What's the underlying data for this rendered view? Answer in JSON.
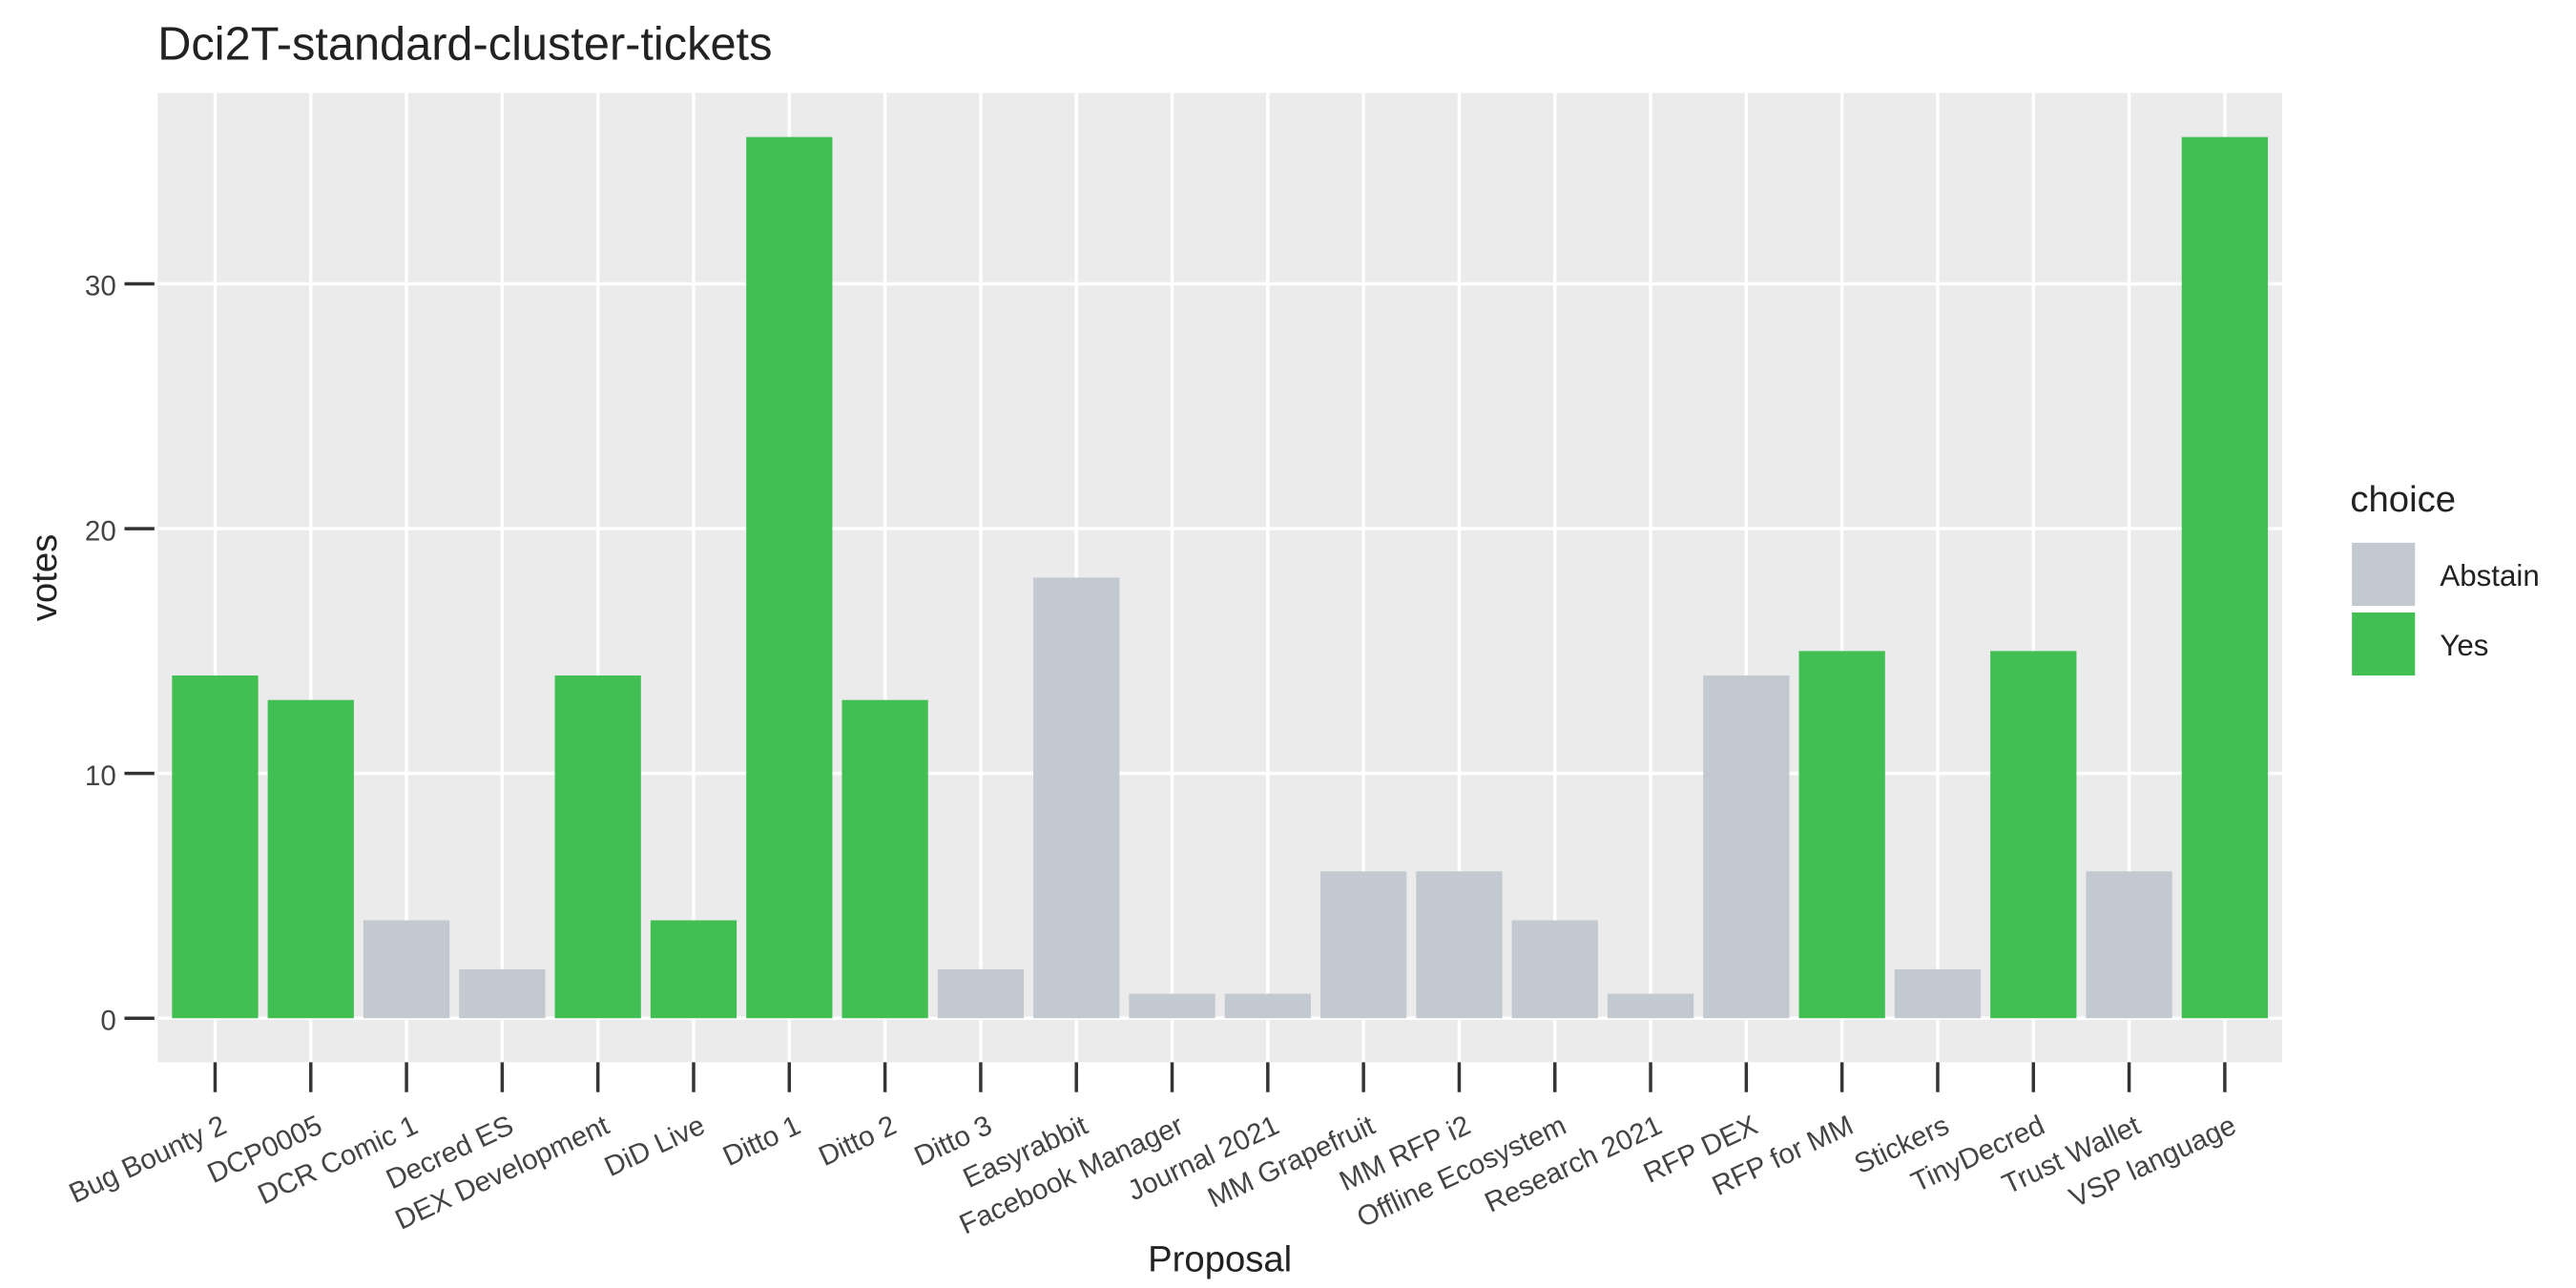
{
  "chart_data": {
    "type": "bar",
    "title": "Dci2T-standard-cluster-tickets",
    "x_label": "Proposal",
    "y_label": "votes",
    "legend_title": "choice",
    "legend_position": "right",
    "grid": true,
    "categories": [
      "Bug Bounty 2",
      "DCP0005",
      "DCR Comic 1",
      "Decred ES",
      "DEX Development",
      "DiD Live",
      "Ditto 1",
      "Ditto 2",
      "Ditto 3",
      "Easyrabbit",
      "Facebook Manager",
      "Journal 2021",
      "MM Grapefruit",
      "MM RFP i2",
      "Offline Ecosystem",
      "Research 2021",
      "RFP DEX",
      "RFP for MM",
      "Stickers",
      "TinyDecred",
      "Trust Wallet",
      "VSP language"
    ],
    "series": [
      {
        "name": "Abstain",
        "color": "#c3c9d0",
        "values": [
          null,
          null,
          4,
          2,
          null,
          null,
          null,
          null,
          2,
          18,
          1,
          1,
          6,
          6,
          4,
          1,
          14,
          null,
          2,
          null,
          6,
          null
        ]
      },
      {
        "name": "Yes",
        "color": "#41bf52",
        "values": [
          14,
          13,
          null,
          null,
          14,
          4,
          36,
          13,
          null,
          null,
          null,
          null,
          null,
          null,
          null,
          null,
          null,
          15,
          null,
          15,
          null,
          36
        ]
      }
    ],
    "ylim": [
      -1.8,
      37.8
    ],
    "yticks": [
      0,
      10,
      20,
      30
    ]
  }
}
